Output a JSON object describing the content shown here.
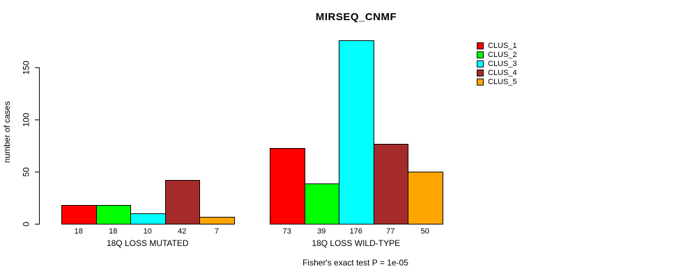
{
  "chart_data": {
    "type": "bar",
    "title": "MIRSEQ_CNMF",
    "ylabel": "number of cases",
    "xlabel": "",
    "yticks": [
      0,
      50,
      100,
      150
    ],
    "ylim": [
      0,
      180
    ],
    "grid": false,
    "legend_position": "right",
    "series_names": [
      "CLUS_1",
      "CLUS_2",
      "CLUS_3",
      "CLUS_4",
      "CLUS_5"
    ],
    "colors": [
      "#ff0000",
      "#00ff00",
      "#00ffff",
      "#a52a2a",
      "#ffa500"
    ],
    "categories": [
      "18Q LOSS MUTATED",
      "18Q LOSS WILD-TYPE"
    ],
    "groups": [
      {
        "category": "18Q LOSS MUTATED",
        "values": [
          18,
          18,
          10,
          42,
          7
        ]
      },
      {
        "category": "18Q LOSS WILD-TYPE",
        "values": [
          73,
          39,
          176,
          77,
          50
        ]
      }
    ],
    "annotation": "Fisher's exact test P = 1e-05"
  }
}
